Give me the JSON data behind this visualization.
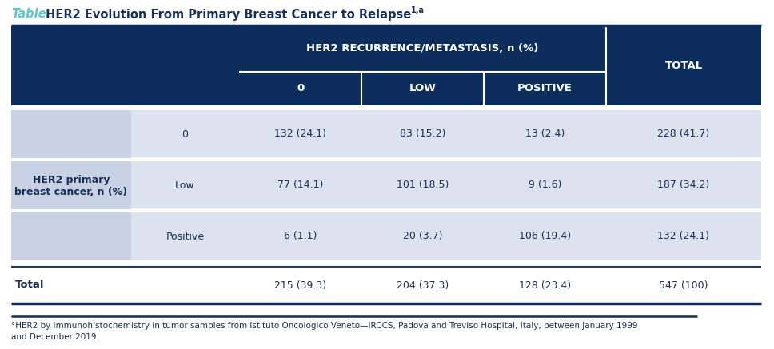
{
  "title_table": "Table.",
  "title_main": " HER2 Evolution From Primary Breast Cancer to Relapse",
  "title_superscript": "1,a",
  "header_group": "HER2 RECURRENCE/METASTASIS, n (%)",
  "header_cols": [
    "0",
    "LOW",
    "POSITIVE"
  ],
  "total_col": "TOTAL",
  "row_group_label_line1": "HER2 primary",
  "row_group_label_line2": "breast cancer, n (%)",
  "row_labels": [
    "0",
    "Low",
    "Positive"
  ],
  "data": [
    [
      "132 (24.1)",
      "83 (15.2)",
      "13 (2.4)",
      "228 (41.7)"
    ],
    [
      "77 (14.1)",
      "101 (18.5)",
      "9 (1.6)",
      "187 (34.2)"
    ],
    [
      "6 (1.1)",
      "20 (3.7)",
      "106 (19.4)",
      "132 (24.1)"
    ]
  ],
  "total_row_label": "Total",
  "total_row": [
    "215 (39.3)",
    "204 (37.3)",
    "128 (23.4)",
    "547 (100)"
  ],
  "footnote_line1": "°HER2 by immunohistochemistry in tumor samples from Istituto Oncologico Veneto—IRCCS, Padova and Treviso Hospital, Italy, between January 1999",
  "footnote_line2": "and December 2019.",
  "footnote_super": "a",
  "color_dark_blue": "#0d2d5c",
  "color_mid_blue": "#1a3d6b",
  "color_row_a": "#dce3ef",
  "color_row_b": "#c8d2e5",
  "color_white": "#ffffff",
  "color_title_teal": "#5bc8d2",
  "color_text_white": "#ffffff",
  "color_text_navy": "#1a2e5a",
  "color_separator": "#6b7fa8",
  "color_bottom_line": "#1a3d6b",
  "background": "#ffffff"
}
